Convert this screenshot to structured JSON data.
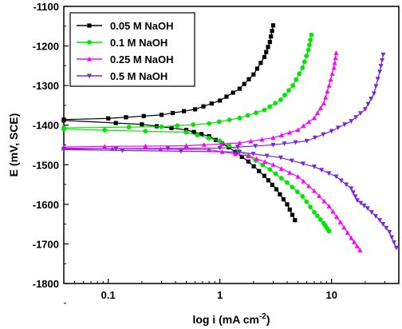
{
  "chart_data": {
    "type": "line",
    "xlabel": "log i (mA cm⁻²)",
    "ylabel": "E (mV, SCE)",
    "x_scale": "log",
    "xlim": [
      0.04,
      40
    ],
    "ylim": [
      -1800,
      -1100
    ],
    "x_ticks": [
      {
        "value": 0.1,
        "label": "0.1"
      },
      {
        "value": 1,
        "label": "1"
      },
      {
        "value": 10,
        "label": "10"
      }
    ],
    "y_ticks": [
      {
        "value": -1100,
        "label": "-1100"
      },
      {
        "value": -1200,
        "label": "-1200"
      },
      {
        "value": -1300,
        "label": "-1300"
      },
      {
        "value": -1400,
        "label": "-1400"
      },
      {
        "value": -1500,
        "label": "-1500"
      },
      {
        "value": -1600,
        "label": "-1600"
      },
      {
        "value": -1700,
        "label": "-1700"
      },
      {
        "value": -1800,
        "label": "-1800"
      }
    ],
    "grid": false,
    "legend": "top-left",
    "series": [
      {
        "name": "0.05 M NaOH",
        "color": "#000000",
        "marker": "square",
        "anodic": [
          [
            0.04,
            -1386
          ],
          [
            0.1,
            -1383
          ],
          [
            0.3,
            -1374
          ],
          [
            0.6,
            -1360
          ],
          [
            1.0,
            -1338
          ],
          [
            1.5,
            -1308
          ],
          [
            2.0,
            -1272
          ],
          [
            2.5,
            -1228
          ],
          [
            2.8,
            -1190
          ],
          [
            3.0,
            -1148
          ]
        ],
        "cathodic": [
          [
            0.04,
            -1388
          ],
          [
            0.2,
            -1398
          ],
          [
            0.5,
            -1412
          ],
          [
            0.8,
            -1428
          ],
          [
            1.2,
            -1456
          ],
          [
            1.8,
            -1492
          ],
          [
            2.5,
            -1528
          ],
          [
            3.2,
            -1562
          ],
          [
            4.0,
            -1600
          ],
          [
            4.7,
            -1640
          ]
        ]
      },
      {
        "name": "0.1 M NaOH",
        "color": "#00e600",
        "marker": "circle",
        "anodic": [
          [
            0.04,
            -1407
          ],
          [
            0.3,
            -1404
          ],
          [
            0.8,
            -1396
          ],
          [
            1.5,
            -1382
          ],
          [
            2.5,
            -1362
          ],
          [
            3.5,
            -1336
          ],
          [
            4.5,
            -1300
          ],
          [
            5.5,
            -1255
          ],
          [
            6.2,
            -1210
          ],
          [
            6.6,
            -1172
          ]
        ],
        "cathodic": [
          [
            0.04,
            -1410
          ],
          [
            0.5,
            -1418
          ],
          [
            1.0,
            -1440
          ],
          [
            1.8,
            -1478
          ],
          [
            2.8,
            -1512
          ],
          [
            4.0,
            -1545
          ],
          [
            5.5,
            -1580
          ],
          [
            7.0,
            -1620
          ],
          [
            8.5,
            -1648
          ],
          [
            9.5,
            -1668
          ]
        ]
      },
      {
        "name": "0.25 M NaOH",
        "color": "#ff00ff",
        "marker": "triangle-up",
        "anodic": [
          [
            0.04,
            -1455
          ],
          [
            0.5,
            -1452
          ],
          [
            1.5,
            -1445
          ],
          [
            3.0,
            -1432
          ],
          [
            5.0,
            -1412
          ],
          [
            7.0,
            -1382
          ],
          [
            8.5,
            -1345
          ],
          [
            9.5,
            -1300
          ],
          [
            10.5,
            -1255
          ],
          [
            11.0,
            -1218
          ]
        ],
        "cathodic": [
          [
            0.04,
            -1458
          ],
          [
            0.8,
            -1462
          ],
          [
            1.8,
            -1478
          ],
          [
            3.0,
            -1500
          ],
          [
            5.0,
            -1530
          ],
          [
            7.0,
            -1566
          ],
          [
            9.5,
            -1605
          ],
          [
            12.0,
            -1645
          ],
          [
            15.0,
            -1685
          ],
          [
            18.0,
            -1716
          ]
        ]
      },
      {
        "name": "0.5 M NaOH",
        "color": "#7a28d8",
        "marker": "triangle-down",
        "anodic": [
          [
            0.04,
            -1460
          ],
          [
            1.0,
            -1458
          ],
          [
            3.0,
            -1450
          ],
          [
            6.0,
            -1440
          ],
          [
            10.0,
            -1415
          ],
          [
            15.0,
            -1390
          ],
          [
            20.0,
            -1360
          ],
          [
            24.0,
            -1320
          ],
          [
            27.0,
            -1265
          ],
          [
            29.0,
            -1222
          ]
        ],
        "cathodic": [
          [
            0.04,
            -1462
          ],
          [
            1.5,
            -1468
          ],
          [
            3.5,
            -1482
          ],
          [
            7.0,
            -1505
          ],
          [
            11.0,
            -1530
          ],
          [
            15.0,
            -1560
          ],
          [
            17.0,
            -1590
          ],
          [
            21.0,
            -1610
          ],
          [
            27.0,
            -1640
          ],
          [
            33.0,
            -1670
          ],
          [
            38.0,
            -1710
          ]
        ]
      }
    ]
  }
}
